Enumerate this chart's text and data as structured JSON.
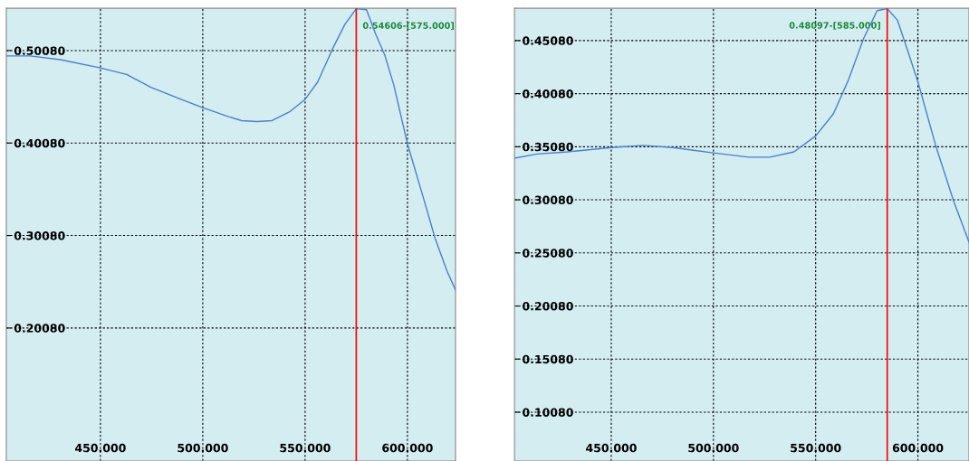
{
  "chart_data": [
    {
      "type": "line",
      "color": "#4a7fd0",
      "grid": true,
      "x": [
        404,
        415.6,
        430.4,
        450,
        462.8,
        474.7,
        489.4,
        500,
        511.7,
        519,
        526.4,
        533.8,
        542.7,
        550,
        556.2,
        563.5,
        569.4,
        575,
        580,
        584.4,
        588.9,
        593.3,
        600,
        607.6,
        613.5,
        619.4,
        623.5
      ],
      "values": [
        0.495,
        0.495,
        0.491,
        0.482,
        0.475,
        0.461,
        0.448,
        0.439,
        0.43,
        0.425,
        0.424,
        0.425,
        0.435,
        0.448,
        0.467,
        0.503,
        0.529,
        0.54606,
        0.545,
        0.519,
        0.496,
        0.464,
        0.4,
        0.343,
        0.298,
        0.262,
        0.242
      ],
      "xlim": [
        404,
        623.5
      ],
      "ylim": [
        0.057,
        0.5465
      ],
      "xticks": [
        {
          "value": 450,
          "label": "450.000"
        },
        {
          "value": 500,
          "label": "500.000"
        },
        {
          "value": 550,
          "label": "550.000"
        },
        {
          "value": 600,
          "label": "600.000"
        }
      ],
      "yticks": [
        {
          "value": 0.2008,
          "label": "0.20080"
        },
        {
          "value": 0.3008,
          "label": "0.30080"
        },
        {
          "value": 0.4008,
          "label": "0.40080"
        },
        {
          "value": 0.5008,
          "label": "0.50080"
        }
      ],
      "ref_lines": [
        {
          "axis": "x",
          "value": 575,
          "color": "#ff0000"
        }
      ],
      "annotations": [
        {
          "text": "0.54606-[575.000]",
          "x": 575,
          "y": 0.54606
        }
      ]
    },
    {
      "type": "line",
      "color": "#4a7fd0",
      "grid": true,
      "x": [
        402.7,
        413.8,
        428.6,
        450,
        465.5,
        480.2,
        500,
        517.3,
        527.6,
        539.4,
        550,
        558.7,
        566.1,
        573.5,
        580.1,
        585,
        590,
        595.4,
        600,
        608.7,
        617.6,
        625
      ],
      "values": [
        0.34,
        0.344,
        0.346,
        0.35,
        0.352,
        0.35,
        0.345,
        0.341,
        0.341,
        0.346,
        0.361,
        0.382,
        0.414,
        0.453,
        0.479,
        0.48097,
        0.47,
        0.439,
        0.412,
        0.352,
        0.299,
        0.261
      ],
      "xlim": [
        402.7,
        625
      ],
      "ylim": [
        0.0548,
        0.4812
      ],
      "xticks": [
        {
          "value": 450,
          "label": "450.000"
        },
        {
          "value": 500,
          "label": "500.000"
        },
        {
          "value": 550,
          "label": "550.000"
        },
        {
          "value": 600,
          "label": "600.000"
        }
      ],
      "yticks": [
        {
          "value": 0.1008,
          "label": "0.10080"
        },
        {
          "value": 0.1508,
          "label": "0.15080"
        },
        {
          "value": 0.2008,
          "label": "0.20080"
        },
        {
          "value": 0.2508,
          "label": "0.25080"
        },
        {
          "value": 0.3008,
          "label": "0.30080"
        },
        {
          "value": 0.3508,
          "label": "0.35080"
        },
        {
          "value": 0.4008,
          "label": "0.40080"
        },
        {
          "value": 0.4508,
          "label": "0.45080"
        }
      ],
      "ref_lines": [
        {
          "axis": "x",
          "value": 585,
          "color": "#ff0000"
        }
      ],
      "annotations": [
        {
          "text": "0.48097-[585.000]",
          "x": 585,
          "y": 0.48097
        }
      ]
    }
  ]
}
